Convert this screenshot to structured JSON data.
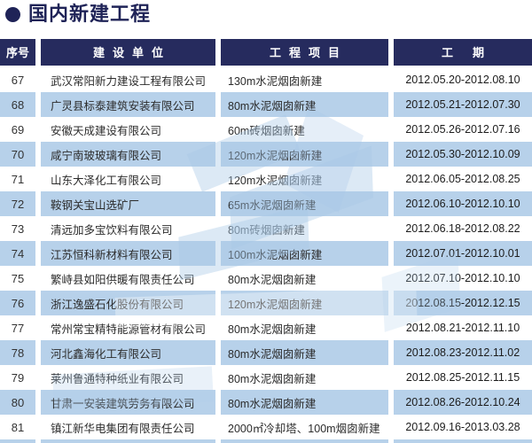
{
  "page": {
    "title": "国内新建工程"
  },
  "table": {
    "header": [
      "序号",
      "建设单位",
      "工程项目",
      "工期"
    ],
    "rows": [
      {
        "no": "67",
        "company": "武汉常阳新力建设工程有限公司",
        "project": "130m水泥烟囱新建",
        "period": "2012.05.20-2012.08.10"
      },
      {
        "no": "68",
        "company": "广灵县标泰建筑安装有限公司",
        "project": "80m水泥烟囱新建",
        "period": "2012.05.21-2012.07.30"
      },
      {
        "no": "69",
        "company": "安徽天成建设有限公司",
        "project": "60m砖烟囱新建",
        "period": "2012.05.26-2012.07.16"
      },
      {
        "no": "70",
        "company": "咸宁南玻玻璃有限公司",
        "project": "120m水泥烟囱新建",
        "period": "2012.05.30-2012.10.09"
      },
      {
        "no": "71",
        "company": "山东大泽化工有限公司",
        "project": "120m水泥烟囱新建",
        "period": "2012.06.05-2012.08.25"
      },
      {
        "no": "72",
        "company": "鞍钢关宝山选矿厂",
        "project": "65m水泥烟囱新建",
        "period": "2012.06.10-2012.10.10"
      },
      {
        "no": "73",
        "company": "清远加多宝饮料有限公司",
        "project": "80m砖烟囱新建",
        "period": "2012.06.18-2012.08.22"
      },
      {
        "no": "74",
        "company": "江苏恒科新材料有限公司",
        "project": "100m水泥烟囱新建",
        "period": "2012.07.01-2012.10.01"
      },
      {
        "no": "75",
        "company": "繁峙县如阳供暖有限责任公司",
        "project": "80m水泥烟囱新建",
        "period": "2012.07.10-2012.10.10"
      },
      {
        "no": "76",
        "company": "浙江逸盛石化股份有限公司",
        "project": "120m水泥烟囱新建",
        "period": "2012.08.15-2012.12.15"
      },
      {
        "no": "77",
        "company": "常州常宝精特能源管材有限公司",
        "project": "80m水泥烟囱新建",
        "period": "2012.08.21-2012.11.10"
      },
      {
        "no": "78",
        "company": "河北鑫海化工有限公司",
        "project": "80m水泥烟囱新建",
        "period": "2012.08.23-2012.11.02"
      },
      {
        "no": "79",
        "company": "莱州鲁通特种纸业有限公司",
        "project": "80m水泥烟囱新建",
        "period": "2012.08.25-2012.11.15"
      },
      {
        "no": "80",
        "company": "甘肃一安装建筑劳务有限公司",
        "project": "80m水泥烟囱新建",
        "period": "2012.08.26-2012.10.24"
      },
      {
        "no": "81",
        "company": "镇江新华电集团有限责任公司",
        "project": "2000㎡冷却塔、100m烟囱新建",
        "period": "2012.09.16-2013.03.28"
      }
    ]
  },
  "colors": {
    "navy": "#262b5e",
    "title_navy": "#1f2357",
    "row_stripe": "#b7d1ea"
  }
}
